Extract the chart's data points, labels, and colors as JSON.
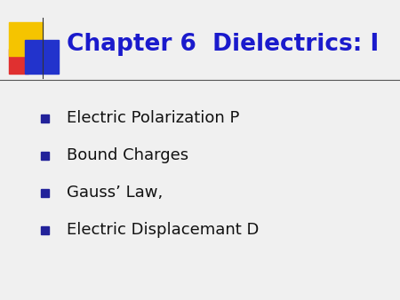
{
  "title": "Chapter 6  Dielectrics: I",
  "title_color": "#1a1acc",
  "title_fontsize": 19,
  "title_fontstyle": "bold",
  "bullet_items": [
    "Electric Polarization P",
    "Bound Charges",
    "Gauss’ Law,",
    "Electric Displacemant D"
  ],
  "bullet_color": "#111111",
  "bullet_fontsize": 13,
  "bullet_marker_color": "#22229a",
  "background_color": "#f0f0f0",
  "separator_line_color": "#555555",
  "logo_yellow_color": "#f5c400",
  "logo_blue_color": "#2233cc",
  "logo_red_color": "#e03030"
}
